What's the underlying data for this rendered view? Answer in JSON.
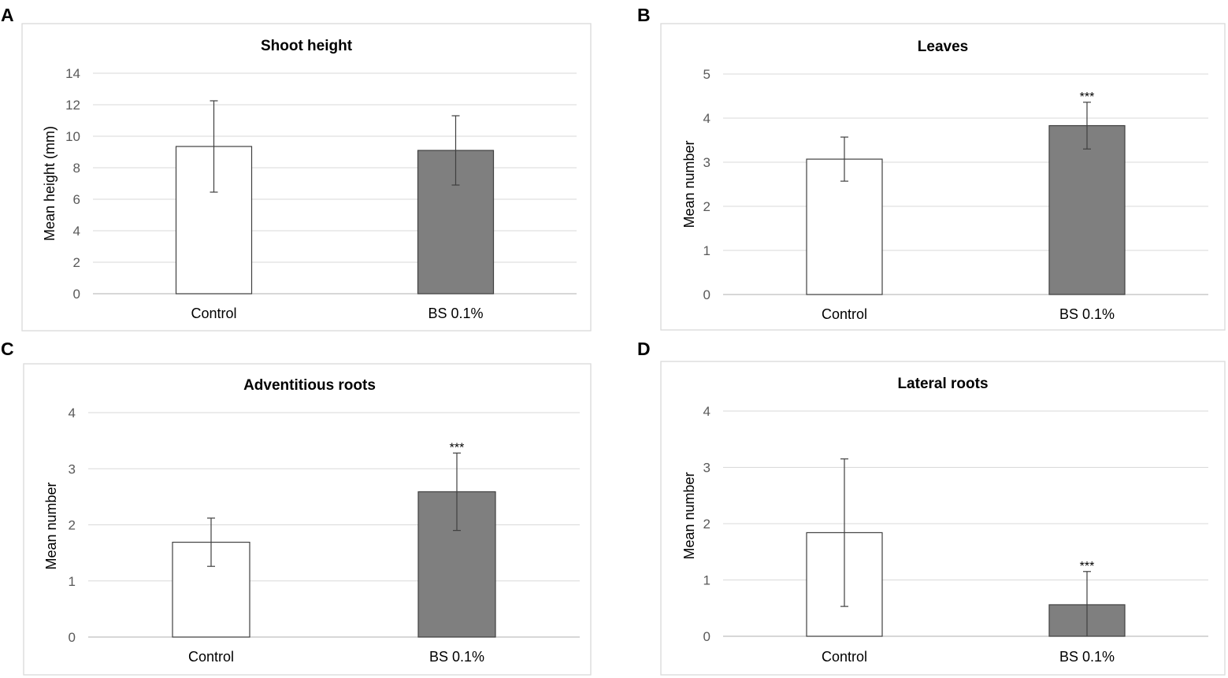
{
  "colors": {
    "control_fill": "#ffffff",
    "treatment_fill": "#7f7f7f",
    "bar_outline": "#404040"
  },
  "chart_data": [
    {
      "panel": "A",
      "type": "bar",
      "title": "Shoot height",
      "xlabel": "",
      "ylabel": "Mean height (mm)",
      "categories": [
        "Control",
        "BS 0.1%"
      ],
      "values": [
        9.35,
        9.1
      ],
      "errors": [
        2.9,
        2.2
      ],
      "significance": [
        "",
        ""
      ],
      "ylim": [
        0,
        14
      ],
      "yticks": [
        0,
        2,
        4,
        6,
        8,
        10,
        12,
        14
      ],
      "grid": true
    },
    {
      "panel": "B",
      "type": "bar",
      "title": "Leaves",
      "xlabel": "",
      "ylabel": "Mean number",
      "categories": [
        "Control",
        "BS 0.1%"
      ],
      "values": [
        3.07,
        3.83
      ],
      "errors": [
        0.5,
        0.53
      ],
      "significance": [
        "",
        "***"
      ],
      "ylim": [
        0,
        5
      ],
      "yticks": [
        0,
        1,
        2,
        3,
        4,
        5
      ],
      "grid": true
    },
    {
      "panel": "C",
      "type": "bar",
      "title": "Adventitious roots",
      "xlabel": "",
      "ylabel": "Mean number",
      "categories": [
        "Control",
        "BS 0.1%"
      ],
      "values": [
        1.69,
        2.59
      ],
      "errors": [
        0.43,
        0.69
      ],
      "significance": [
        "",
        "***"
      ],
      "ylim": [
        0,
        4
      ],
      "yticks": [
        0,
        1,
        2,
        3,
        4
      ],
      "grid": true
    },
    {
      "panel": "D",
      "type": "bar",
      "title": "Lateral roots",
      "xlabel": "",
      "ylabel": "Mean number",
      "categories": [
        "Control",
        "BS 0.1%"
      ],
      "values": [
        1.84,
        0.56
      ],
      "errors": [
        1.31,
        0.59
      ],
      "significance": [
        "",
        "***"
      ],
      "ylim": [
        0,
        4
      ],
      "yticks": [
        0,
        1,
        2,
        3,
        4
      ],
      "grid": true
    }
  ]
}
